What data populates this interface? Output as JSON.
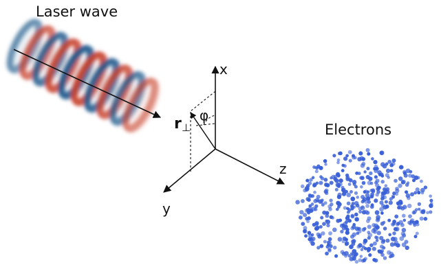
{
  "laser": {
    "title": "Laser wave",
    "colors": {
      "blue": "#1f5a8c",
      "red": "#c8432f"
    }
  },
  "electrons": {
    "title": "Electrons",
    "color": "#3a60d6"
  },
  "axes": {
    "x": "x",
    "y": "y",
    "z": "z"
  },
  "vector": {
    "r_symbol": "r",
    "r_subscript": "⊥",
    "angle": "φ"
  }
}
